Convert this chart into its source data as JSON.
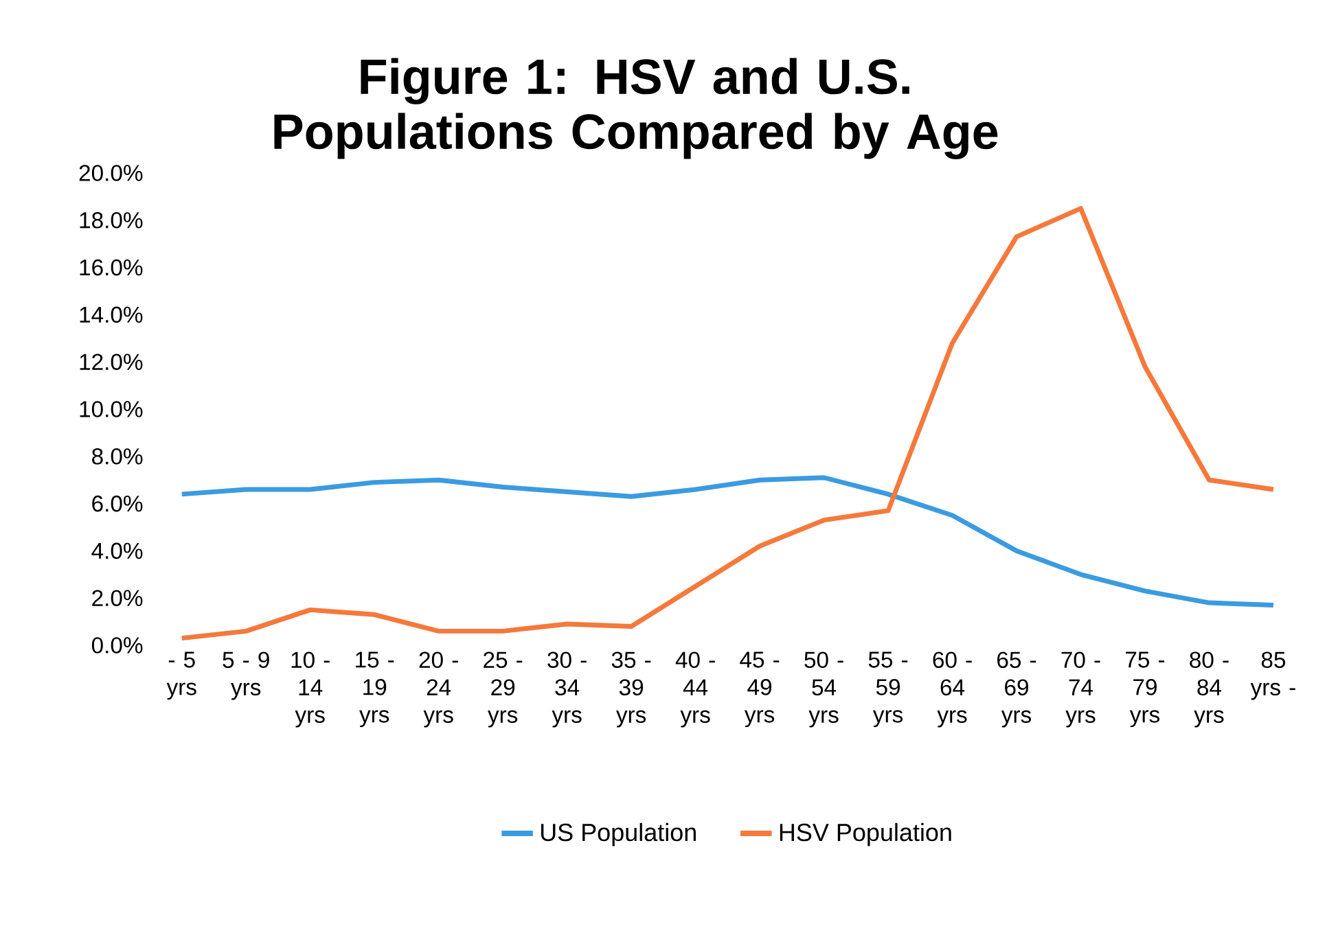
{
  "chart_data": {
    "type": "line",
    "title": "Figure 1: HSV and U.S. Populations Compared by Age",
    "categories": [
      "- 5 yrs",
      "5 - 9 yrs",
      "10 - 14 yrs",
      "15 - 19 yrs",
      "20 - 24 yrs",
      "25 - 29 yrs",
      "30 - 34 yrs",
      "35 - 39 yrs",
      "40 - 44 yrs",
      "45 - 49 yrs",
      "50 - 54 yrs",
      "55 - 59 yrs",
      "60 - 64 yrs",
      "65 - 69 yrs",
      "70 - 74 yrs",
      "75 - 79 yrs",
      "80 - 84 yrs",
      "85 yrs -"
    ],
    "series": [
      {
        "name": "US Population",
        "color": "#3b9be0",
        "values": [
          6.4,
          6.6,
          6.6,
          6.9,
          7.0,
          6.7,
          6.5,
          6.3,
          6.6,
          7.0,
          7.1,
          6.4,
          5.5,
          4.0,
          3.0,
          2.3,
          1.8,
          1.7
        ]
      },
      {
        "name": "HSV Population",
        "color": "#f4793b",
        "values": [
          0.3,
          0.6,
          1.5,
          1.3,
          0.6,
          0.6,
          0.9,
          0.8,
          2.5,
          4.2,
          5.3,
          5.7,
          12.8,
          17.3,
          18.5,
          11.8,
          7.0,
          6.6
        ]
      }
    ],
    "ylim": [
      0,
      20
    ],
    "yticks": [
      {
        "value": 0,
        "label": "0.0%"
      },
      {
        "value": 2,
        "label": "2.0%"
      },
      {
        "value": 4,
        "label": "4.0%"
      },
      {
        "value": 6,
        "label": "6.0%"
      },
      {
        "value": 8,
        "label": "8.0%"
      },
      {
        "value": 10,
        "label": "10.0%"
      },
      {
        "value": 12,
        "label": "12.0%"
      },
      {
        "value": 14,
        "label": "14.0%"
      },
      {
        "value": 16,
        "label": "16.0%"
      },
      {
        "value": 18,
        "label": "18.0%"
      },
      {
        "value": 20,
        "label": "20.0%"
      }
    ],
    "legend": "bottom"
  }
}
